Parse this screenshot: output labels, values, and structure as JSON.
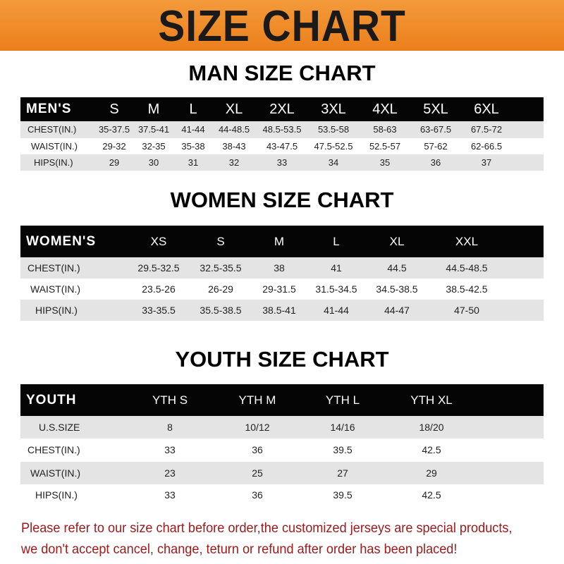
{
  "banner_title": "SIZE CHART",
  "men": {
    "title": "MAN SIZE CHART",
    "header_label": "MEN'S",
    "sizes": [
      "S",
      "M",
      "L",
      "XL",
      "2XL",
      "3XL",
      "4XL",
      "5XL",
      "6XL"
    ],
    "rows": [
      {
        "label": "CHEST(IN.)",
        "values": [
          "35-37.5",
          "37.5-41",
          "41-44",
          "44-48.5",
          "48.5-53.5",
          "53.5-58",
          "58-63",
          "63-67.5",
          "67.5-72"
        ]
      },
      {
        "label": "WAIST(IN.)",
        "values": [
          "29-32",
          "32-35",
          "35-38",
          "38-43",
          "43-47.5",
          "47.5-52.5",
          "52.5-57",
          "57-62",
          "62-66.5"
        ]
      },
      {
        "label": "HIPS(IN.)",
        "values": [
          "29",
          "30",
          "31",
          "32",
          "33",
          "34",
          "35",
          "36",
          "37"
        ]
      }
    ]
  },
  "women": {
    "title": "WOMEN SIZE CHART",
    "header_label": "WOMEN'S",
    "sizes": [
      "XS",
      "S",
      "M",
      "L",
      "XL",
      "XXL"
    ],
    "rows": [
      {
        "label": "CHEST(IN.)",
        "values": [
          "29.5-32.5",
          "32.5-35.5",
          "38",
          "41",
          "44.5",
          "44.5-48.5"
        ]
      },
      {
        "label": "WAIST(IN.)",
        "values": [
          "23.5-26",
          "26-29",
          "29-31.5",
          "31.5-34.5",
          "34.5-38.5",
          "38.5-42.5"
        ]
      },
      {
        "label": "HIPS(IN.)",
        "values": [
          "33-35.5",
          "35.5-38.5",
          "38.5-41",
          "41-44",
          "44-47",
          "47-50"
        ]
      }
    ]
  },
  "youth": {
    "title": "YOUTH SIZE CHART",
    "header_label": "YOUTH",
    "sizes": [
      "YTH S",
      "YTH M",
      "YTH L",
      "YTH XL"
    ],
    "rows": [
      {
        "label": "U.S.SIZE",
        "values": [
          "8",
          "10/12",
          "14/16",
          "18/20"
        ]
      },
      {
        "label": "CHEST(IN.)",
        "values": [
          "33",
          "36",
          "39.5",
          "42.5"
        ]
      },
      {
        "label": "WAIST(IN.)",
        "values": [
          "23",
          "25",
          "27",
          "29"
        ]
      },
      {
        "label": "HIPS(IN.)",
        "values": [
          "33",
          "36",
          "39.5",
          "42.5"
        ]
      }
    ]
  },
  "notice": {
    "line1": "Please refer to our size chart before order,the customized jerseys are special products,",
    "line2": "we don't accept cancel, change, teturn or refund after order has been placed!"
  },
  "colors": {
    "banner": "#ee8624",
    "header_row": "#050505",
    "stripe": "#e4e4e4",
    "notice": "#9b1a1a"
  }
}
